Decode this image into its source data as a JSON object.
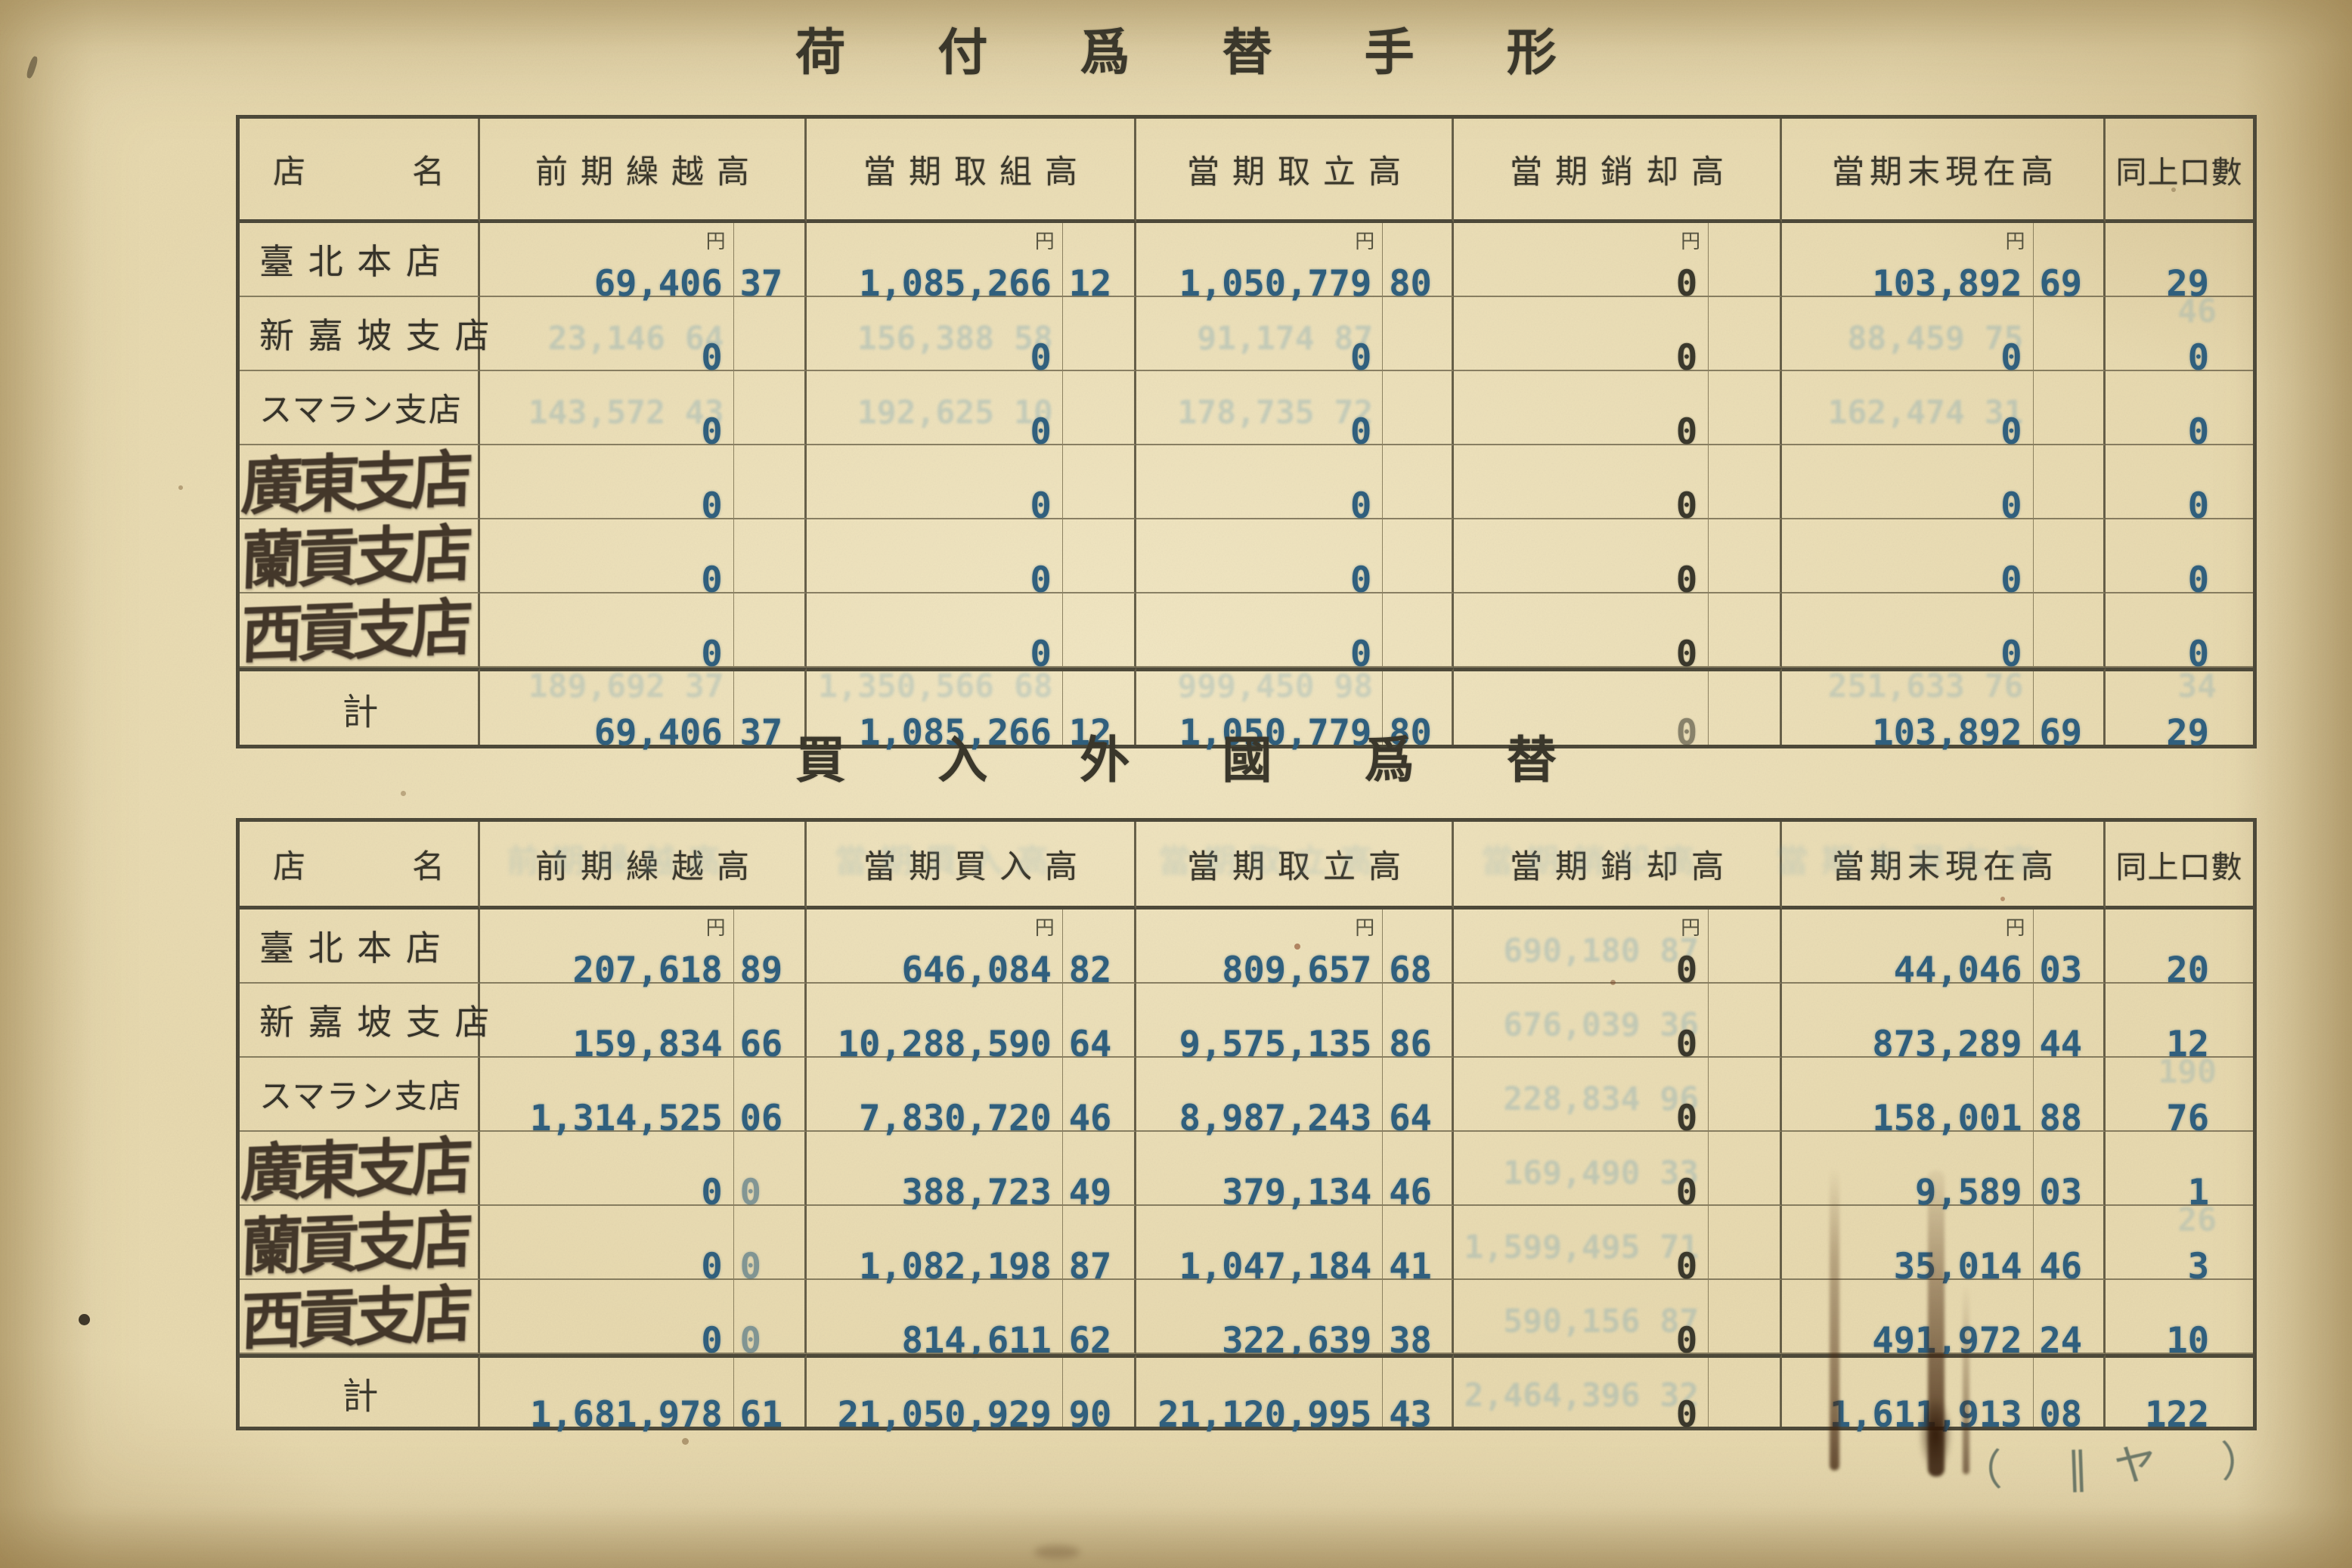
{
  "unit": "円",
  "annotation": "（ ‖ヤ ）",
  "table1": {
    "title": "荷付爲替手形",
    "headers": [
      "店名",
      "前期繰越高",
      "當期取組高",
      "當期取立高",
      "當期銷却高",
      "當期末現在高",
      "同上口數"
    ],
    "rows": [
      {
        "name": "臺 北 本 店",
        "yen": true,
        "cells": [
          {
            "v": "69,406",
            "s": "37"
          },
          {
            "v": "1,085,266",
            "s": "12"
          },
          {
            "v": "1,050,779",
            "s": "80"
          },
          {
            "v": "0",
            "ink": "dark"
          },
          {
            "v": "103,892",
            "s": "69"
          }
        ],
        "count": {
          "v": "29"
        }
      },
      {
        "name": "新 嘉 坡 支 店",
        "cells": [
          {
            "v": "0",
            "g": "23,146 64"
          },
          {
            "v": "0",
            "g": "156,388 58"
          },
          {
            "v": "0",
            "g": "91,174 87"
          },
          {
            "v": "0",
            "ink": "dark"
          },
          {
            "v": "0",
            "g": "88,459 75"
          }
        ],
        "count": {
          "v": "0",
          "g": "46"
        }
      },
      {
        "name": "スマラン支店",
        "small": true,
        "cells": [
          {
            "v": "0",
            "g": "143,572 43"
          },
          {
            "v": "0",
            "g": "192,625 10"
          },
          {
            "v": "0",
            "g": "178,735 72"
          },
          {
            "v": "0",
            "ink": "dark"
          },
          {
            "v": "0",
            "g": "162,474 31"
          }
        ],
        "count": {
          "v": "0"
        }
      },
      {
        "name": "廣東支店",
        "hand": true,
        "cells": [
          {
            "v": "0"
          },
          {
            "v": "0"
          },
          {
            "v": "0"
          },
          {
            "v": "0",
            "ink": "dark"
          },
          {
            "v": "0"
          }
        ],
        "count": {
          "v": "0"
        }
      },
      {
        "name": "蘭貢支店",
        "hand": true,
        "cells": [
          {
            "v": "0"
          },
          {
            "v": "0"
          },
          {
            "v": "0"
          },
          {
            "v": "0",
            "ink": "dark"
          },
          {
            "v": "0"
          }
        ],
        "count": {
          "v": "0"
        }
      },
      {
        "name": "西貢支店",
        "hand": true,
        "cells": [
          {
            "v": "0"
          },
          {
            "v": "0"
          },
          {
            "v": "0"
          },
          {
            "v": "0",
            "ink": "dark"
          },
          {
            "v": "0"
          }
        ],
        "count": {
          "v": "0"
        }
      },
      {
        "name": "計",
        "total": true,
        "cells": [
          {
            "v": "69,406",
            "s": "37",
            "g": "189,692 37"
          },
          {
            "v": "1,085,266",
            "s": "12",
            "g": "1,350,566 68"
          },
          {
            "v": "1,050,779",
            "s": "80",
            "g": "999,450 98"
          },
          {
            "v": "0",
            "ink": "dark",
            "faint": true
          },
          {
            "v": "103,892",
            "s": "69",
            "g": "251,633 76"
          }
        ],
        "count": {
          "v": "29",
          "g": "34"
        }
      }
    ]
  },
  "table2": {
    "title": "買入外國爲替",
    "ghost_headers": true,
    "headers": [
      "店名",
      "前期繰越高",
      "當期買入高",
      "當期取立高",
      "當期銷却高",
      "當期末現在高",
      "同上口數"
    ],
    "rows": [
      {
        "name": "臺 北 本 店",
        "yen": true,
        "cells": [
          {
            "v": "207,618",
            "s": "89"
          },
          {
            "v": "646,084",
            "s": "82"
          },
          {
            "v": "809,657",
            "s": "68"
          },
          {
            "v": "0",
            "ink": "dark",
            "g": "690,180 87"
          },
          {
            "v": "44,046",
            "s": "03"
          }
        ],
        "count": {
          "v": "20"
        }
      },
      {
        "name": "新 嘉 坡 支 店",
        "cells": [
          {
            "v": "159,834",
            "s": "66"
          },
          {
            "v": "10,288,590",
            "s": "64"
          },
          {
            "v": "9,575,135",
            "s": "86"
          },
          {
            "v": "0",
            "ink": "dark",
            "g": "676,039 36"
          },
          {
            "v": "873,289",
            "s": "44"
          }
        ],
        "count": {
          "v": "12"
        }
      },
      {
        "name": "スマラン支店",
        "small": true,
        "cells": [
          {
            "v": "1,314,525",
            "s": "06"
          },
          {
            "v": "7,830,720",
            "s": "46"
          },
          {
            "v": "8,987,243",
            "s": "64"
          },
          {
            "v": "0",
            "ink": "dark",
            "g": "228,834 96"
          },
          {
            "v": "158,001",
            "s": "88"
          }
        ],
        "count": {
          "v": "76",
          "g": "190"
        }
      },
      {
        "name": "廣東支店",
        "hand": true,
        "cells": [
          {
            "v": "0",
            "s": "0",
            "sfaint": true
          },
          {
            "v": "388,723",
            "s": "49"
          },
          {
            "v": "379,134",
            "s": "46"
          },
          {
            "v": "0",
            "ink": "dark",
            "g": "169,490 33"
          },
          {
            "v": "9,589",
            "s": "03"
          }
        ],
        "count": {
          "v": "1"
        }
      },
      {
        "name": "蘭貢支店",
        "hand": true,
        "cells": [
          {
            "v": "0",
            "s": "0",
            "sfaint": true
          },
          {
            "v": "1,082,198",
            "s": "87"
          },
          {
            "v": "1,047,184",
            "s": "41"
          },
          {
            "v": "0",
            "ink": "dark",
            "g": "1,599,495 71"
          },
          {
            "v": "35,014",
            "s": "46"
          }
        ],
        "count": {
          "v": "3",
          "g": "26"
        }
      },
      {
        "name": "西貢支店",
        "hand": true,
        "cells": [
          {
            "v": "0",
            "s": "0",
            "sfaint": true
          },
          {
            "v": "814,611",
            "s": "62"
          },
          {
            "v": "322,639",
            "s": "38"
          },
          {
            "v": "0",
            "ink": "dark",
            "g": "590,156 87"
          },
          {
            "v": "491,972",
            "s": "24"
          }
        ],
        "count": {
          "v": "10"
        }
      },
      {
        "name": "計",
        "total": true,
        "cells": [
          {
            "v": "1,681,978",
            "s": "61"
          },
          {
            "v": "21,050,929",
            "s": "90"
          },
          {
            "v": "21,120,995",
            "s": "43"
          },
          {
            "v": "0",
            "ink": "dark",
            "g": "2,464,396 32"
          },
          {
            "v": "1,611,913",
            "s": "08"
          }
        ],
        "count": {
          "v": "122"
        }
      }
    ]
  }
}
